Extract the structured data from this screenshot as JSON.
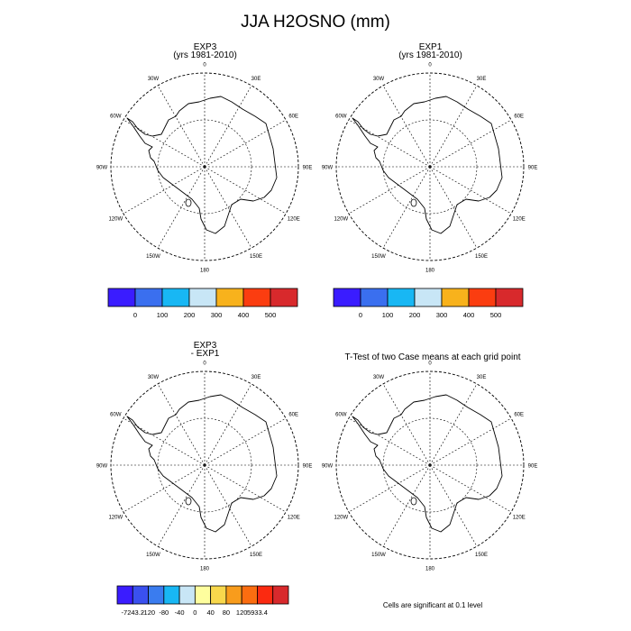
{
  "figure": {
    "title": "JJA H2OSNO (mm)",
    "note": "Cells are significant at 0.1 level"
  },
  "map_ticks": [
    "0",
    "30E",
    "60E",
    "90E",
    "120E",
    "150E",
    "180",
    "150W",
    "120W",
    "90W",
    "60W",
    "30W"
  ],
  "panels": [
    {
      "id": "exp3",
      "title_line1": "EXP3",
      "title_line2": "(yrs 1981-2010)"
    },
    {
      "id": "exp1",
      "title_line1": "EXP1",
      "title_line2": "(yrs 1981-2010)"
    },
    {
      "id": "diff",
      "title_line1": "EXP3",
      "title_line2": "- EXP1"
    },
    {
      "id": "ttest",
      "title_line1": "T-Test of two Case means at each grid point",
      "title_line2": ""
    }
  ],
  "colorbars": {
    "absolute": {
      "colors": [
        "#3a1cff",
        "#3a6fef",
        "#18b7f4",
        "#c8e6f6",
        "#f8b21c",
        "#fb3d10",
        "#d8292c"
      ],
      "labels": [
        "0",
        "100",
        "200",
        "300",
        "400",
        "500"
      ]
    },
    "difference": {
      "colors": [
        "#3a1cff",
        "#3a50ef",
        "#3a7cef",
        "#18b7f4",
        "#c8e6f6",
        "#fefe9e",
        "#f8d84c",
        "#f89c1c",
        "#fb6d10",
        "#fb2a10",
        "#d8292c"
      ],
      "labels": [
        "-7243.2",
        "-120",
        "-80",
        "-40",
        "0",
        "40",
        "80",
        "120",
        "5933.4"
      ]
    }
  },
  "chart_data": {
    "type": "map",
    "projection": "south polar stereographic",
    "region": "Antarctica",
    "season": "JJA",
    "variable": "H2OSNO",
    "units": "mm",
    "grid": true
  }
}
